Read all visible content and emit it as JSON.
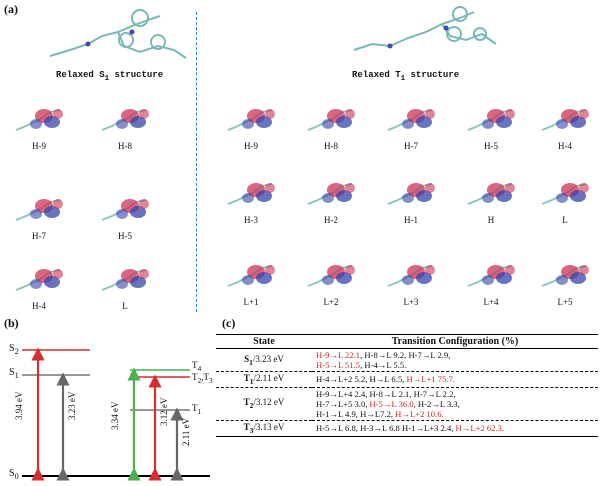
{
  "panel_a": {
    "label": "(a)",
    "s1_title": "Relaxed S",
    "s1_sub": "1",
    "s1_suffix": " structure",
    "t1_title": "Relaxed T",
    "t1_sub": "1",
    "t1_suffix": " structure",
    "s1_orbitals": [
      "H-9",
      "H-8",
      "H-7",
      "H-5",
      "H-4",
      "L"
    ],
    "t1_orbitals_row1": [
      "H-9",
      "H-8",
      "H-7",
      "H-5",
      "H-4"
    ],
    "t1_orbitals_row2": [
      "H-3",
      "H-2",
      "H-1",
      "H",
      "L"
    ],
    "t1_orbitals_row3": [
      "L+1",
      "L+2",
      "L+3",
      "L+4",
      "L+5"
    ]
  },
  "panel_b": {
    "label": "(b)",
    "levels_left": {
      "s2": "S",
      "s2_sub": "2",
      "s1": "S",
      "s1_sub": "1",
      "s0": "S",
      "s0_sub": "0"
    },
    "levels_right": {
      "t4": "T",
      "t4_sub": "4",
      "t23": "T",
      "t23_sub": "2",
      "t23_sep": ",T",
      "t23_sub2": "3",
      "t1": "T",
      "t1_sub": "1"
    },
    "arrows": {
      "e1": "3.94 eV",
      "e2": "3.23 eV",
      "e3": "3.34 eV",
      "e4": "3.12 eV",
      "e5": "2.11 eV"
    },
    "colors": {
      "red": "#d32f2f",
      "gray": "#666666",
      "green": "#4caf50"
    }
  },
  "panel_c": {
    "label": "(c)",
    "header_state": "State",
    "header_config": "Transition Configuration (%)",
    "rows": [
      {
        "state": "S",
        "sub": "1",
        "energy": "/3.23 eV",
        "line1_red": "H-9→L 22.1",
        "line1_black": ", H-8→L 9.2, H-7→L 2.9,",
        "line2_red": "H-5→L 51.5",
        "line2_black": ", H-4→L 5.5."
      },
      {
        "state": "T",
        "sub": "1",
        "energy": "/2.11 eV",
        "line1_black": "H-4→L+2 5.2, H→L 6.5, ",
        "line1_red": "H→L+1 75.7."
      },
      {
        "state": "T",
        "sub": "2",
        "energy": "/3.12 eV",
        "line1": "H-9→L+4 2.4, H-8→L 2.1, H-7→L 2.2,",
        "line2_black_a": "H-7→L+5 3.0, ",
        "line2_red": "H-5→L 36.0",
        "line2_black_b": ", H-2→L 3.3,",
        "line3_black": "H-1→L 4.9, H→L7.2, ",
        "line3_red": "H→L+2 10.6."
      },
      {
        "state": "T",
        "sub": "3",
        "energy": "/3.13 eV",
        "line1_black": "H-5→L 6.8, H-3→L 6.8 H-1→L+3 2.4, ",
        "line1_red": "H→L+2 62.3."
      }
    ]
  }
}
